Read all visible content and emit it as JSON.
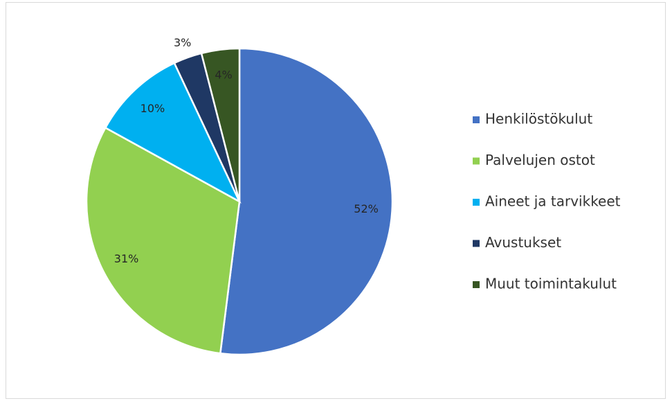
{
  "chart_data": {
    "type": "pie",
    "categories": [
      "Henkilöstökulut",
      "Palvelujen ostot",
      "Aineet ja tarvikkeet",
      "Avustukset",
      "Muut toimintakulut"
    ],
    "values": [
      52,
      31,
      10,
      3,
      4
    ],
    "value_labels": [
      "52%",
      "31%",
      "10%",
      "3%",
      "4%"
    ],
    "colors": [
      "#4472c4",
      "#92d050",
      "#00b0f0",
      "#1f3864",
      "#375623"
    ],
    "legend": "right"
  }
}
